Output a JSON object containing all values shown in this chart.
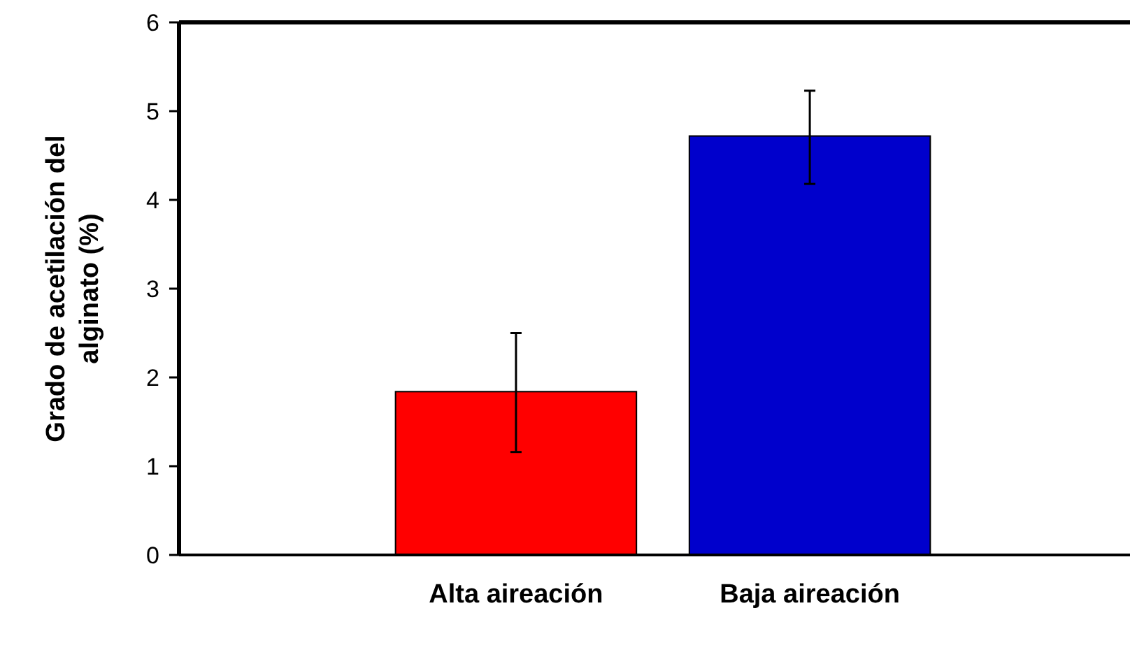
{
  "chart_data": {
    "type": "bar",
    "ylabel": "Grado de acetilación del alginato (%)",
    "categories": [
      "Alta aireación",
      "Baja aireación"
    ],
    "values": [
      1.84,
      4.72
    ],
    "colors": [
      "#ff0000",
      "#0000cc"
    ],
    "errors": [
      [
        1.16,
        2.5
      ],
      [
        4.18,
        5.23
      ]
    ],
    "ylim": [
      0,
      6
    ],
    "yticks": [
      0,
      1,
      2,
      3,
      4,
      5,
      6
    ],
    "grid": false
  }
}
